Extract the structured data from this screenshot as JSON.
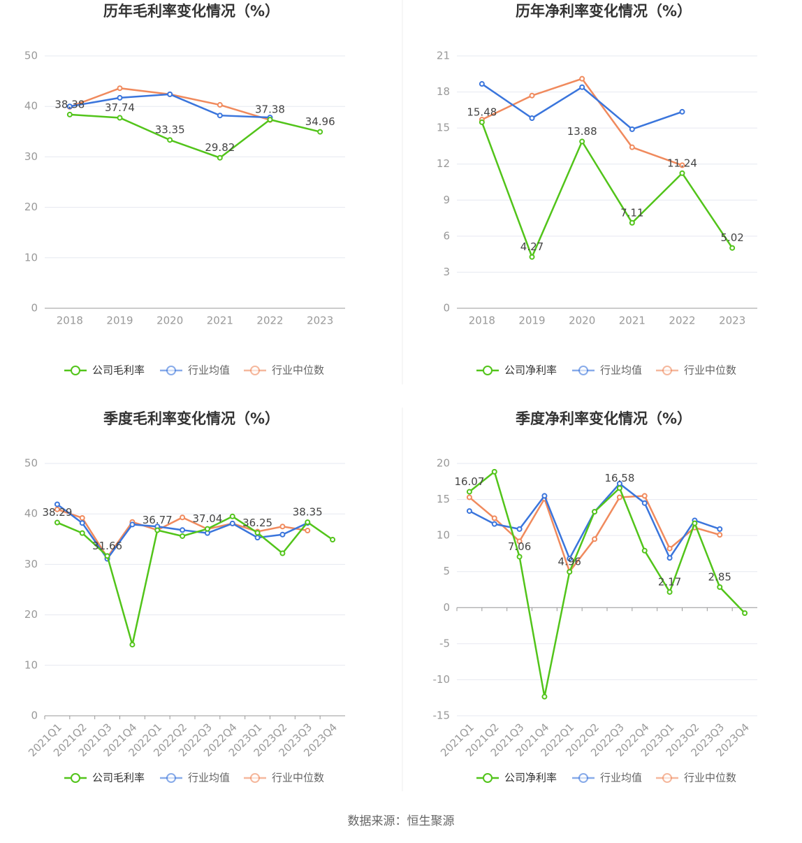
{
  "chart_data": [
    {
      "type": "line",
      "title": "历年毛利率变化情况（%）",
      "categories": [
        "2018",
        "2019",
        "2020",
        "2021",
        "2022",
        "2023"
      ],
      "ylim": [
        0,
        50
      ],
      "yticks": [
        0,
        10,
        20,
        30,
        40,
        50
      ],
      "grid": true,
      "label_step": 1,
      "series": [
        {
          "name": "公司毛利率",
          "color": "#52c41a",
          "show_labels": true,
          "values": [
            38.38,
            37.74,
            33.35,
            29.82,
            37.38,
            34.96
          ]
        },
        {
          "name": "行业均值",
          "color": "#3a75dc",
          "values": [
            40.0,
            41.7,
            42.4,
            38.2,
            37.8,
            null
          ]
        },
        {
          "name": "行业中位数",
          "color": "#f08a5d",
          "values": [
            39.9,
            43.6,
            42.4,
            40.3,
            37.3,
            null
          ]
        }
      ]
    },
    {
      "type": "line",
      "title": "历年净利率变化情况（%）",
      "categories": [
        "2018",
        "2019",
        "2020",
        "2021",
        "2022",
        "2023"
      ],
      "ylim": [
        0,
        21
      ],
      "yticks": [
        0,
        3,
        6,
        9,
        12,
        15,
        18,
        21
      ],
      "grid": true,
      "label_step": 1,
      "series": [
        {
          "name": "公司净利率",
          "color": "#52c41a",
          "show_labels": true,
          "values": [
            15.48,
            4.27,
            13.88,
            7.11,
            11.24,
            5.02
          ]
        },
        {
          "name": "行业均值",
          "color": "#3a75dc",
          "values": [
            18.67,
            15.82,
            18.4,
            14.9,
            16.35,
            null
          ]
        },
        {
          "name": "行业中位数",
          "color": "#f08a5d",
          "values": [
            15.7,
            17.7,
            19.1,
            13.4,
            11.9,
            null
          ]
        }
      ]
    },
    {
      "type": "line",
      "title": "季度毛利率变化情况（%）",
      "categories": [
        "2021Q1",
        "2021Q2",
        "2021Q3",
        "2021Q4",
        "2022Q1",
        "2022Q2",
        "2022Q3",
        "2022Q4",
        "2023Q1",
        "2023Q2",
        "2023Q3",
        "2023Q4"
      ],
      "ylim": [
        0,
        50
      ],
      "yticks": [
        0,
        10,
        20,
        30,
        40,
        50
      ],
      "grid": true,
      "label_step": 2,
      "rotate_labels": true,
      "series": [
        {
          "name": "公司毛利率",
          "color": "#52c41a",
          "show_labels": true,
          "values": [
            38.29,
            36.2,
            31.66,
            14.1,
            36.77,
            35.6,
            37.04,
            39.5,
            36.25,
            32.2,
            38.35,
            34.9
          ]
        },
        {
          "name": "行业均值",
          "color": "#3a75dc",
          "values": [
            41.9,
            38.2,
            31.1,
            37.9,
            37.5,
            36.8,
            36.2,
            38.1,
            35.3,
            35.9,
            38.2,
            null
          ]
        },
        {
          "name": "行业中位数",
          "color": "#f08a5d",
          "values": [
            40.9,
            39.2,
            31.4,
            38.4,
            36.8,
            39.3,
            37.0,
            38.1,
            36.5,
            37.5,
            36.7,
            null
          ]
        }
      ]
    },
    {
      "type": "line",
      "title": "季度净利率变化情况（%）",
      "categories": [
        "2021Q1",
        "2021Q2",
        "2021Q3",
        "2021Q4",
        "2022Q1",
        "2022Q2",
        "2022Q3",
        "2022Q4",
        "2023Q1",
        "2023Q2",
        "2023Q3",
        "2023Q4"
      ],
      "ylim": [
        -15,
        20
      ],
      "yticks": [
        -15,
        -10,
        -5,
        0,
        5,
        10,
        15,
        20
      ],
      "grid": true,
      "label_step": 2,
      "rotate_labels": true,
      "series": [
        {
          "name": "公司净利率",
          "color": "#52c41a",
          "show_labels": true,
          "values": [
            16.07,
            18.85,
            7.06,
            -12.35,
            4.96,
            13.3,
            16.58,
            7.9,
            2.17,
            11.7,
            2.85,
            -0.76
          ]
        },
        {
          "name": "行业均值",
          "color": "#3a75dc",
          "values": [
            13.4,
            11.6,
            10.9,
            15.5,
            6.8,
            13.3,
            17.2,
            14.5,
            6.9,
            12.1,
            10.9,
            null
          ]
        },
        {
          "name": "行业中位数",
          "color": "#f08a5d",
          "values": [
            15.3,
            12.4,
            9.2,
            15.1,
            5.0,
            9.5,
            15.3,
            15.5,
            8.2,
            11.1,
            10.1,
            null
          ]
        }
      ]
    }
  ],
  "source": "数据来源：恒生聚源"
}
